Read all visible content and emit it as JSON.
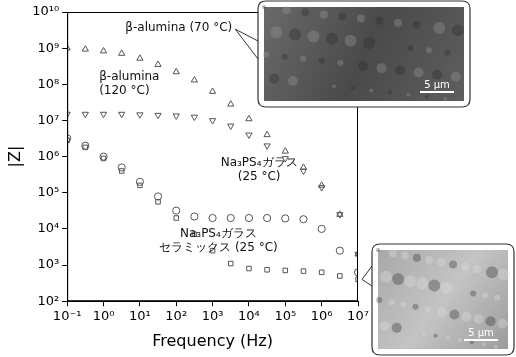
{
  "chart_data": {
    "type": "scatter",
    "x_label": "Frequency (Hz)",
    "y_label": "|Z|",
    "log": true,
    "grid": false,
    "legend": "none",
    "xlim": [
      0.1,
      10000000
    ],
    "ylim": [
      100,
      10000000000
    ],
    "xticks": [
      {
        "value": 0.1,
        "label": "10⁻¹"
      },
      {
        "value": 1,
        "label": "10⁰"
      },
      {
        "value": 10,
        "label": "10¹"
      },
      {
        "value": 100,
        "label": "10²"
      },
      {
        "value": 1000,
        "label": "10³"
      },
      {
        "value": 10000,
        "label": "10⁴"
      },
      {
        "value": 100000,
        "label": "10⁵"
      },
      {
        "value": 1000000,
        "label": "10⁶"
      },
      {
        "value": 10000000,
        "label": "10⁷"
      }
    ],
    "yticks": [
      {
        "value": 100,
        "label": "10²"
      },
      {
        "value": 1000,
        "label": "10³"
      },
      {
        "value": 10000,
        "label": "10⁴"
      },
      {
        "value": 100000,
        "label": "10⁵"
      },
      {
        "value": 1000000,
        "label": "10⁶"
      },
      {
        "value": 10000000,
        "label": "10⁷"
      },
      {
        "value": 100000000,
        "label": "10⁸"
      },
      {
        "value": 1000000000,
        "label": "10⁹"
      },
      {
        "value": 10000000000,
        "label": "10¹⁰"
      }
    ],
    "x": [
      0.1,
      0.316,
      1,
      3.16,
      10,
      31.6,
      100,
      316,
      1000,
      3160,
      10000,
      31600,
      100000,
      316000,
      1000000,
      3160000,
      10000000
    ],
    "series": [
      {
        "name": "β-alumina (70 °C)",
        "color": "#555555",
        "marker": "triangle",
        "values": [
          1000000000,
          930000000,
          830000000,
          710000000,
          520000000,
          350000000,
          220000000,
          130000000,
          63000000,
          28000000,
          11000000,
          4000000,
          1400000,
          500000,
          160000,
          25000,
          2000
        ]
      },
      {
        "name": "β-alumina\n(120 °C)",
        "color": "#555555",
        "marker": "triangle-down",
        "values": [
          15000000,
          15000000,
          15000000,
          15000000,
          14500000,
          14000000,
          13500000,
          12500000,
          10000000,
          7100000,
          4000000,
          2000000,
          890000,
          400000,
          140000,
          25000,
          2000
        ]
      },
      {
        "name": "Na₃PS₄ガラス\n(25 °C)",
        "color": "#555555",
        "marker": "circle",
        "values": [
          3200000,
          2000000,
          1000000,
          500000,
          200000,
          79000,
          32000,
          22000,
          20000,
          20000,
          20000,
          20000,
          19500,
          18500,
          10000,
          2500,
          630
        ]
      },
      {
        "name": "Na₃PS₄ガラス\nセラミックス (25 °C)",
        "color": "#555555",
        "marker": "square",
        "values": [
          2800000,
          1800000,
          890000,
          400000,
          160000,
          56000,
          20000,
          7100,
          2500,
          1100,
          800,
          740,
          710,
          680,
          630,
          500,
          400
        ]
      }
    ],
    "annotations": [
      "5 μm",
      "5 μm"
    ]
  }
}
